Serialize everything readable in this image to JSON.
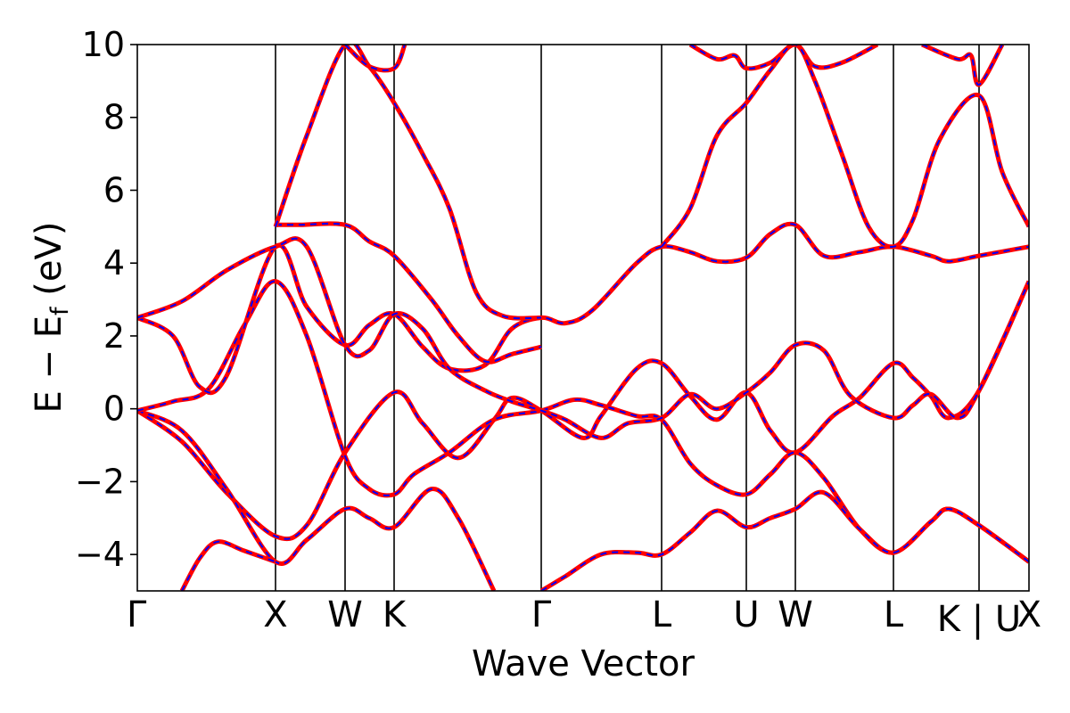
{
  "chart_data": {
    "type": "line",
    "title": "",
    "xlabel": "Wave Vector",
    "ylabel": "E − E",
    "ylabel_subscript": "f",
    "ylabel_unit": "(eV)",
    "ylim": [
      -5,
      10
    ],
    "yticks": [
      -4,
      -2,
      0,
      2,
      4,
      6,
      8,
      10
    ],
    "ytick_labels": [
      "−4",
      "−2",
      "0",
      "2",
      "4",
      "6",
      "8",
      "10"
    ],
    "xlim": [
      0,
      1
    ],
    "grid": false,
    "legend": "none",
    "colors": {
      "dft": "#ff0000",
      "fit": "#0000ff",
      "vline": "#000000"
    },
    "kpoints": [
      {
        "label": "Γ",
        "x": 0.0
      },
      {
        "label": "X",
        "x": 0.155
      },
      {
        "label": "W",
        "x": 0.233
      },
      {
        "label": "K",
        "x": 0.288
      },
      {
        "label": "Γ",
        "x": 0.453
      },
      {
        "label": "L",
        "x": 0.588
      },
      {
        "label": "U",
        "x": 0.683
      },
      {
        "label": "W",
        "x": 0.738
      },
      {
        "label": "L",
        "x": 0.848
      },
      {
        "label": "K | U",
        "x": 0.944
      },
      {
        "label": "X",
        "x": 1.0
      }
    ],
    "series": [
      {
        "points": [
          [
            0,
            -0.05
          ],
          [
            0.05,
            -0.9
          ],
          [
            0.1,
            -2.3
          ],
          [
            0.155,
            -3.5
          ],
          [
            0.19,
            -3.2
          ],
          [
            0.233,
            -1.2
          ],
          [
            0.288,
            0.45
          ],
          [
            0.32,
            -0.4
          ],
          [
            0.36,
            -1.35
          ],
          [
            0.4,
            -0.3
          ],
          [
            0.42,
            0.3
          ],
          [
            0.453,
            -0.05
          ],
          [
            0.5,
            -0.8
          ],
          [
            0.52,
            -0.2
          ],
          [
            0.56,
            1.1
          ],
          [
            0.588,
            1.25
          ],
          [
            0.62,
            0.35
          ],
          [
            0.65,
            -0.3
          ],
          [
            0.683,
            0.45
          ],
          [
            0.71,
            -0.6
          ],
          [
            0.738,
            -1.2
          ],
          [
            0.78,
            -0.2
          ],
          [
            0.81,
            0.3
          ],
          [
            0.848,
            1.25
          ],
          [
            0.87,
            0.85
          ],
          [
            0.89,
            0.35
          ],
          [
            0.91,
            -0.25
          ],
          [
            0.944,
            0.5
          ],
          [
            1,
            3.5
          ]
        ]
      },
      {
        "points": [
          [
            0,
            -0.05
          ],
          [
            0.05,
            -0.6
          ],
          [
            0.1,
            -2.2
          ],
          [
            0.155,
            -4.2
          ],
          [
            0.19,
            -3.6
          ],
          [
            0.233,
            -2.75
          ],
          [
            0.26,
            -3.0
          ],
          [
            0.288,
            -3.25
          ],
          [
            0.33,
            -2.2
          ],
          [
            0.36,
            -3.0
          ],
          [
            0.4,
            -5.0
          ]
        ]
      },
      {
        "points": [
          [
            0,
            -0.05
          ],
          [
            0.04,
            0.2
          ],
          [
            0.08,
            0.55
          ],
          [
            0.12,
            2.3
          ],
          [
            0.155,
            3.5
          ],
          [
            0.19,
            2.0
          ],
          [
            0.233,
            -1.3
          ],
          [
            0.26,
            -2.2
          ],
          [
            0.288,
            -2.35
          ],
          [
            0.31,
            -1.8
          ],
          [
            0.35,
            -1.2
          ],
          [
            0.4,
            -0.3
          ],
          [
            0.453,
            -0.05
          ],
          [
            0.49,
            0.25
          ],
          [
            0.52,
            0.1
          ],
          [
            0.56,
            -0.2
          ],
          [
            0.588,
            -0.3
          ],
          [
            0.62,
            -1.5
          ],
          [
            0.65,
            -2.1
          ],
          [
            0.683,
            -2.35
          ],
          [
            0.71,
            -1.8
          ],
          [
            0.738,
            -1.2
          ],
          [
            0.77,
            -1.9
          ],
          [
            0.81,
            -3.3
          ],
          [
            0.848,
            -3.95
          ],
          [
            0.89,
            -3.1
          ],
          [
            0.91,
            -2.75
          ],
          [
            0.944,
            -3.2
          ],
          [
            1,
            -4.2
          ]
        ]
      },
      {
        "points": [
          [
            0,
            2.5
          ],
          [
            0.04,
            2.0
          ],
          [
            0.07,
            0.6
          ],
          [
            0.1,
            0.9
          ],
          [
            0.155,
            4.45
          ],
          [
            0.19,
            2.8
          ],
          [
            0.233,
            1.75
          ],
          [
            0.26,
            2.3
          ],
          [
            0.288,
            2.6
          ],
          [
            0.32,
            1.7
          ],
          [
            0.35,
            1.1
          ],
          [
            0.39,
            1.2
          ],
          [
            0.42,
            2.2
          ],
          [
            0.453,
            2.5
          ],
          [
            0.48,
            2.35
          ],
          [
            0.51,
            2.7
          ],
          [
            0.56,
            4.0
          ],
          [
            0.588,
            4.45
          ],
          [
            0.62,
            4.3
          ],
          [
            0.65,
            4.05
          ],
          [
            0.683,
            4.15
          ],
          [
            0.71,
            4.8
          ],
          [
            0.738,
            5.05
          ],
          [
            0.77,
            4.2
          ],
          [
            0.81,
            4.3
          ],
          [
            0.848,
            4.45
          ],
          [
            0.89,
            4.2
          ],
          [
            0.91,
            4.05
          ],
          [
            0.944,
            4.2
          ],
          [
            1,
            4.45
          ]
        ]
      },
      {
        "points": [
          [
            0,
            2.5
          ],
          [
            0.05,
            2.95
          ],
          [
            0.1,
            3.8
          ],
          [
            0.155,
            4.45
          ],
          [
            0.19,
            4.45
          ],
          [
            0.233,
            1.75
          ],
          [
            0.26,
            1.6
          ],
          [
            0.288,
            2.6
          ],
          [
            0.32,
            2.2
          ],
          [
            0.35,
            1.1
          ],
          [
            0.39,
            0.5
          ],
          [
            0.42,
            0.2
          ],
          [
            0.453,
            -0.05
          ],
          [
            0.48,
            -0.3
          ],
          [
            0.52,
            -0.8
          ],
          [
            0.55,
            -0.4
          ],
          [
            0.588,
            -0.25
          ],
          [
            0.62,
            0.4
          ],
          [
            0.65,
            0.0
          ],
          [
            0.683,
            0.45
          ],
          [
            0.71,
            1.0
          ],
          [
            0.738,
            1.75
          ],
          [
            0.77,
            1.6
          ],
          [
            0.8,
            0.35
          ],
          [
            0.848,
            -0.25
          ],
          [
            0.87,
            0.1
          ],
          [
            0.89,
            0.4
          ],
          [
            0.92,
            -0.25
          ],
          [
            0.944,
            0.5
          ],
          [
            1,
            3.5
          ]
        ]
      },
      {
        "points": [
          [
            0.155,
            5.05
          ],
          [
            0.18,
            5.05
          ],
          [
            0.233,
            5.05
          ],
          [
            0.26,
            4.6
          ],
          [
            0.288,
            4.2
          ],
          [
            0.33,
            3.0
          ],
          [
            0.36,
            2.0
          ],
          [
            0.39,
            1.3
          ],
          [
            0.42,
            1.5
          ],
          [
            0.453,
            1.7
          ]
        ]
      },
      {
        "points": [
          [
            0.155,
            5.0
          ],
          [
            0.19,
            7.5
          ],
          [
            0.233,
            10.0
          ],
          [
            0.26,
            9.4
          ],
          [
            0.288,
            8.4
          ],
          [
            0.32,
            7.0
          ],
          [
            0.35,
            5.5
          ],
          [
            0.38,
            3.2
          ],
          [
            0.41,
            2.55
          ],
          [
            0.453,
            2.5
          ]
        ]
      },
      {
        "points": [
          [
            0.233,
            10.0
          ],
          [
            0.26,
            9.4
          ],
          [
            0.288,
            9.35
          ],
          [
            0.3,
            10.0
          ]
        ]
      },
      {
        "points": [
          [
            0.62,
            10.0
          ],
          [
            0.65,
            9.6
          ],
          [
            0.67,
            9.7
          ],
          [
            0.683,
            9.35
          ],
          [
            0.71,
            9.5
          ],
          [
            0.738,
            10.0
          ],
          [
            0.76,
            9.4
          ],
          [
            0.79,
            9.5
          ],
          [
            0.83,
            10.0
          ]
        ]
      },
      {
        "points": [
          [
            0.588,
            4.45
          ],
          [
            0.62,
            5.5
          ],
          [
            0.65,
            7.5
          ],
          [
            0.683,
            8.4
          ],
          [
            0.71,
            9.3
          ],
          [
            0.738,
            10.0
          ],
          [
            0.76,
            9.0
          ],
          [
            0.79,
            7.0
          ],
          [
            0.82,
            5.0
          ],
          [
            0.848,
            4.45
          ],
          [
            0.87,
            5.2
          ],
          [
            0.9,
            7.4
          ],
          [
            0.944,
            8.6
          ],
          [
            0.97,
            6.5
          ],
          [
            1,
            5.0
          ]
        ]
      },
      {
        "points": [
          [
            0.88,
            10.0
          ],
          [
            0.92,
            9.6
          ],
          [
            0.935,
            9.7
          ],
          [
            0.944,
            8.9
          ],
          [
            0.97,
            10.0
          ]
        ]
      },
      {
        "points": [
          [
            0.453,
            -5.0
          ],
          [
            0.48,
            -4.6
          ],
          [
            0.52,
            -4.0
          ],
          [
            0.56,
            -3.95
          ],
          [
            0.588,
            -4.0
          ],
          [
            0.62,
            -3.4
          ],
          [
            0.65,
            -2.8
          ],
          [
            0.683,
            -3.25
          ],
          [
            0.71,
            -3.0
          ],
          [
            0.738,
            -2.75
          ],
          [
            0.77,
            -2.3
          ],
          [
            0.81,
            -3.3
          ],
          [
            0.848,
            -3.95
          ],
          [
            0.89,
            -3.1
          ],
          [
            0.91,
            -2.75
          ],
          [
            0.944,
            -3.2
          ],
          [
            1,
            -4.2
          ]
        ]
      },
      {
        "points": [
          [
            0.05,
            -5.0
          ],
          [
            0.07,
            -4.1
          ],
          [
            0.09,
            -3.65
          ],
          [
            0.12,
            -3.9
          ],
          [
            0.155,
            -4.2
          ]
        ]
      }
    ]
  }
}
